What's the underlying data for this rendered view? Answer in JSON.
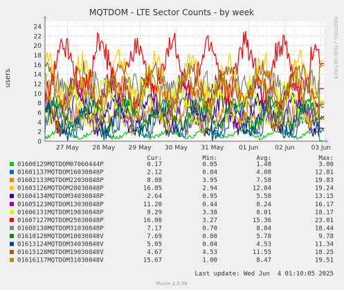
{
  "chart_data": {
    "type": "line",
    "title": "MQTDOM - LTE Sector Counts - by week",
    "ylabel": "users",
    "side_label": "RRDTOOL / TOBI OETIKER",
    "ylim": [
      0,
      25
    ],
    "y_ticks": [
      0,
      2,
      4,
      6,
      8,
      10,
      12,
      14,
      16,
      18,
      20,
      22,
      24
    ],
    "x_ticks": [
      "27 May",
      "28 May",
      "29 May",
      "30 May",
      "31 May",
      "01 Jun",
      "02 Jun",
      "03 Jun"
    ],
    "grid": true,
    "columns": {
      "cur": "Cur:",
      "min": "Min:",
      "avg": "Avg:",
      "max": "Max:"
    },
    "series": [
      {
        "name": "01600129MQTDOM07060444P",
        "color": "#00cc00",
        "cur": "0.17",
        "min": "0.05",
        "avg": "1.48",
        "max": "3.00"
      },
      {
        "name": "01601137MQTDOM16030848P",
        "color": "#0066b3",
        "cur": "2.12",
        "min": "0.84",
        "avg": "4.08",
        "max": "12.81"
      },
      {
        "name": "01602133MQTDOM22030848P",
        "color": "#ff8000",
        "cur": "8.08",
        "min": "3.95",
        "avg": "7.58",
        "max": "19.83"
      },
      {
        "name": "01603126MQTDOM28030848P",
        "color": "#ffcc00",
        "cur": "16.85",
        "min": "2.94",
        "avg": "12.84",
        "max": "19.24"
      },
      {
        "name": "01604134MQTDOM34030848P",
        "color": "#330099",
        "cur": "2.64",
        "min": "0.95",
        "avg": "5.58",
        "max": "13.15"
      },
      {
        "name": "01605123MQTDOM13030848P",
        "color": "#990099",
        "cur": "11.20",
        "min": "0.44",
        "avg": "8.24",
        "max": "16.17"
      },
      {
        "name": "01606131MQTDOM19030848P",
        "color": "#ccff00",
        "cur": "8.29",
        "min": "3.38",
        "avg": "8.01",
        "max": "18.17"
      },
      {
        "name": "01607127MQTDOM25030848P",
        "color": "#ff0000",
        "cur": "16.08",
        "min": "3.27",
        "avg": "15.36",
        "max": "23.01"
      },
      {
        "name": "01608130MQTDOM31030848P",
        "color": "#808080",
        "cur": "7.17",
        "min": "0.70",
        "avg": "8.04",
        "max": "18.44"
      },
      {
        "name": "01610120MQTDOM10030848V",
        "color": "#008f00",
        "cur": "7.69",
        "min": "0.00",
        "avg": "5.78",
        "max": "9.78"
      },
      {
        "name": "01613124MQTDOM34030848V",
        "color": "#00487d",
        "cur": "5.05",
        "min": "0.04",
        "avg": "4.53",
        "max": "11.34"
      },
      {
        "name": "01615128MQTDOM19030848V",
        "color": "#b35a00",
        "cur": "4.67",
        "min": "4.53",
        "avg": "11.55",
        "max": "18.25"
      },
      {
        "name": "01616117MQTDOM31030848V",
        "color": "#b38f00",
        "cur": "15.67",
        "min": "1.00",
        "avg": "8.47",
        "max": "19.51"
      }
    ],
    "last_update": "Last update: Wed Jun  4 01:10:05 2025",
    "footer": "Munin 2.0.56"
  }
}
